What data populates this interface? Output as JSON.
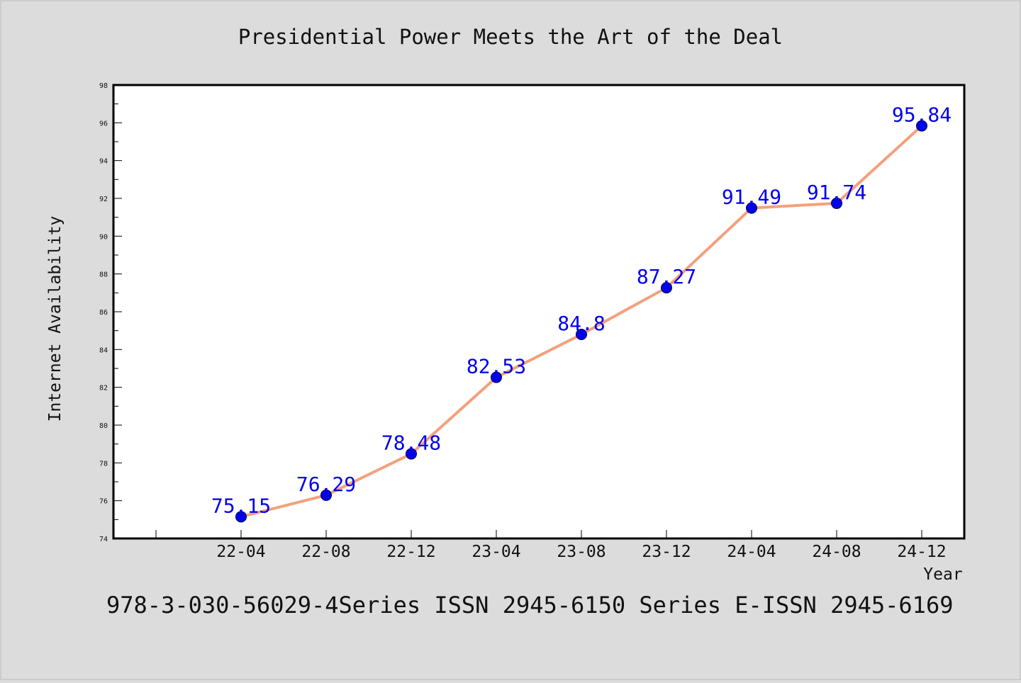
{
  "chart_data": {
    "type": "line",
    "title": "Presidential Power Meets the Art of the Deal",
    "xlabel": "Year",
    "ylabel": "Internet Availability",
    "categories": [
      "22-04",
      "22-08",
      "22-12",
      "23-04",
      "23-08",
      "23-12",
      "24-04",
      "24-08",
      "24-12"
    ],
    "series": [
      {
        "values": [
          75.15,
          76.29,
          78.48,
          82.53,
          84.8,
          87.27,
          91.49,
          91.74,
          95.84
        ]
      }
    ],
    "data_labels": [
      "75.15",
      "76.29",
      "78.48",
      "82.53",
      "84.8",
      "87.27",
      "91.49",
      "91.74",
      "95.84"
    ],
    "ylim": [
      74,
      98
    ],
    "yticks": [
      74,
      76,
      78,
      80,
      82,
      84,
      86,
      88,
      90,
      92,
      94,
      96,
      98
    ],
    "grid": false,
    "legend": "none",
    "line_color": "#f4a07c",
    "marker_color": "#0000ee",
    "label_color": "#0000ee"
  },
  "footer_text": "978-3-030-56029-4Series ISSN 2945-6150 Series E-ISSN 2945-6169"
}
